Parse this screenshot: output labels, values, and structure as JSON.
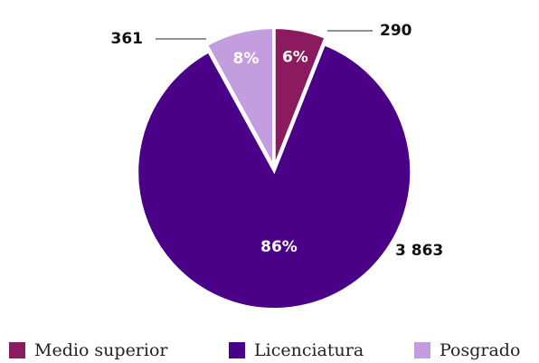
{
  "chart_data": {
    "type": "pie",
    "categories": [
      "Medio superior",
      "Licenciatura",
      "Posgrado"
    ],
    "values": [
      6,
      86,
      8
    ],
    "value_labels": [
      "6%",
      "86%",
      "8%"
    ],
    "counts": [
      290,
      3863,
      361
    ],
    "count_labels": [
      "290",
      "3 863",
      "361"
    ],
    "colors": [
      "#8b1a5e",
      "#4b0088",
      "#c39ddd"
    ],
    "legend": "bottom"
  }
}
